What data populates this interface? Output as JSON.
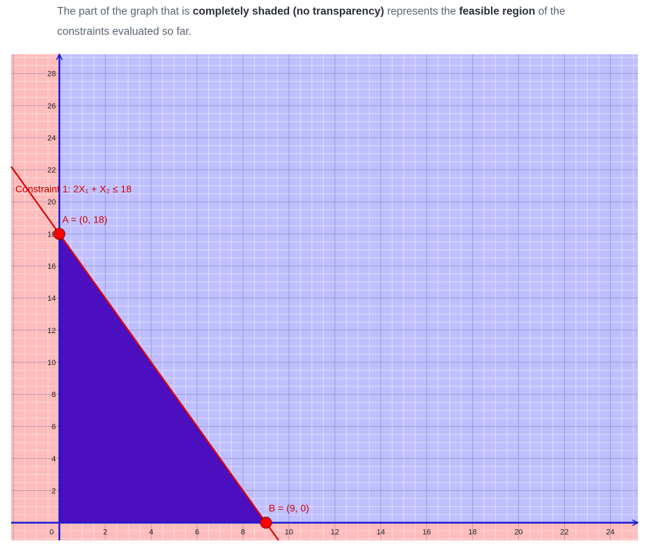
{
  "intro": {
    "part1": "The part of the graph that is ",
    "bold1": "completely shaded (no transparency)",
    "part2": " represents the ",
    "bold2": "feasible region",
    "part3": " of the constraints evaluated so far."
  },
  "colors": {
    "infeasible_fill": "#ffbcbc",
    "positive_quadrant_fill": "#bfbfff",
    "feasible_fill": "#4b0fbf",
    "constraint_line": "#e00000",
    "axis": "#1a1ad6",
    "point_fill": "#ff0000"
  },
  "chart_data": {
    "type": "area",
    "xlim": [
      -2.1,
      25.2
    ],
    "ylim": [
      -1.1,
      29.2
    ],
    "xticks": [
      0,
      2,
      4,
      6,
      8,
      10,
      12,
      14,
      16,
      18,
      20,
      22,
      24
    ],
    "yticks": [
      0,
      2,
      4,
      6,
      8,
      10,
      12,
      14,
      16,
      18,
      20,
      22,
      24,
      26,
      28
    ],
    "grid": true,
    "constraint": {
      "label": "Constraint 1: 2X₁ + X₂ ≤ 18",
      "a": 2,
      "b": 1,
      "rhs": 18
    },
    "feasible_region": [
      [
        0,
        0
      ],
      [
        0,
        18
      ],
      [
        9,
        0
      ]
    ],
    "points": [
      {
        "name": "A",
        "label": "A = (0, 18)",
        "x": 0,
        "y": 18
      },
      {
        "name": "B",
        "label": "B = (9, 0)",
        "x": 9,
        "y": 0
      }
    ]
  }
}
